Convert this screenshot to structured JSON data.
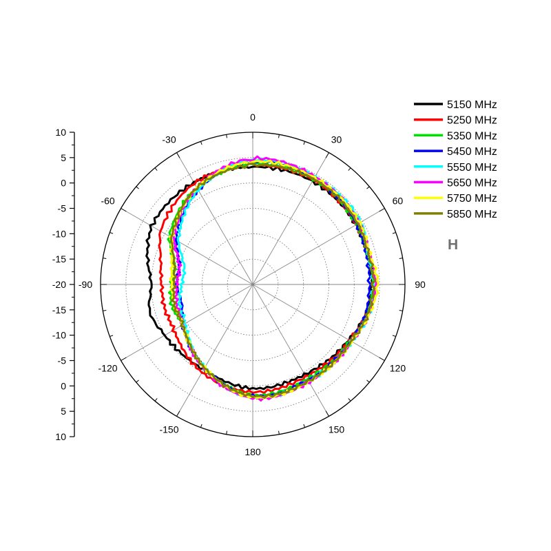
{
  "chart_data": {
    "type": "polar-line",
    "title": "",
    "annotation": "H",
    "angle_unit": "deg",
    "angle_zero": "top",
    "angle_direction": "clockwise",
    "angle_ticks": [
      0,
      30,
      60,
      90,
      120,
      150,
      180,
      150,
      120,
      90,
      60,
      30
    ],
    "angle_tick_labels": [
      "0",
      "30",
      "60",
      "90",
      "120",
      "150",
      "180",
      "-150",
      "-120",
      "-90",
      "-60",
      "-30"
    ],
    "radial_axis": {
      "min": -20,
      "max": 10,
      "ticks_upper": [
        "10",
        "5",
        "0",
        "-5",
        "-10",
        "-15",
        "-20"
      ],
      "ticks_lower": [
        "-15",
        "-10",
        "-5",
        "0",
        "5",
        "10"
      ]
    },
    "grid": true,
    "legend_position": "top-right",
    "angles": [
      0,
      30,
      60,
      75,
      90,
      105,
      120,
      150,
      180,
      210,
      240,
      255,
      270,
      285,
      300,
      330
    ],
    "series": [
      {
        "name": "5150 MHz",
        "color": "#000000",
        "values": [
          3.2,
          3.5,
          3.5,
          3.4,
          3.5,
          3.0,
          1.8,
          0.5,
          0.5,
          -0.6,
          0.0,
          1.0,
          0.0,
          1.5,
          3.0,
          3.2
        ]
      },
      {
        "name": "5250 MHz",
        "color": "#ff0000",
        "values": [
          3.5,
          3.8,
          3.5,
          3.4,
          3.7,
          3.2,
          2.0,
          1.0,
          1.2,
          0.0,
          -2.0,
          -2.0,
          -2.0,
          -1.2,
          1.0,
          3.0
        ]
      },
      {
        "name": "5350 MHz",
        "color": "#00e000",
        "values": [
          3.8,
          4.0,
          3.6,
          3.3,
          3.8,
          3.2,
          2.2,
          1.5,
          1.8,
          -1.0,
          -4.0,
          -3.5,
          -4.0,
          -4.0,
          -1.0,
          2.0
        ]
      },
      {
        "name": "5450 MHz",
        "color": "#0000ff",
        "values": [
          4.2,
          4.2,
          3.7,
          3.2,
          3.0,
          3.0,
          2.3,
          1.8,
          2.0,
          -1.0,
          -4.0,
          -5.5,
          -5.0,
          -5.0,
          -2.5,
          1.5
        ]
      },
      {
        "name": "5550 MHz",
        "color": "#00ffff",
        "values": [
          4.5,
          4.5,
          4.6,
          3.5,
          3.8,
          3.5,
          2.5,
          2.0,
          2.2,
          -1.0,
          -4.5,
          -5.0,
          -6.0,
          -6.0,
          -3.0,
          1.5
        ]
      },
      {
        "name": "5650 MHz",
        "color": "#ff00ff",
        "values": [
          4.8,
          4.5,
          4.2,
          3.8,
          4.2,
          3.6,
          2.5,
          2.2,
          2.4,
          -0.8,
          -4.0,
          -4.5,
          -5.0,
          -5.0,
          -2.0,
          2.0
        ]
      },
      {
        "name": "5750 MHz",
        "color": "#ffff00",
        "values": [
          4.2,
          4.3,
          4.3,
          3.8,
          4.6,
          3.6,
          2.5,
          2.1,
          2.2,
          -1.0,
          -4.0,
          -4.0,
          -4.0,
          -3.5,
          -1.5,
          2.0
        ]
      },
      {
        "name": "5850 MHz",
        "color": "#808000",
        "values": [
          3.5,
          4.0,
          3.9,
          3.6,
          3.8,
          3.4,
          2.4,
          2.0,
          2.0,
          -1.0,
          -4.0,
          -4.0,
          -4.5,
          -4.0,
          -1.5,
          2.0
        ]
      }
    ]
  }
}
